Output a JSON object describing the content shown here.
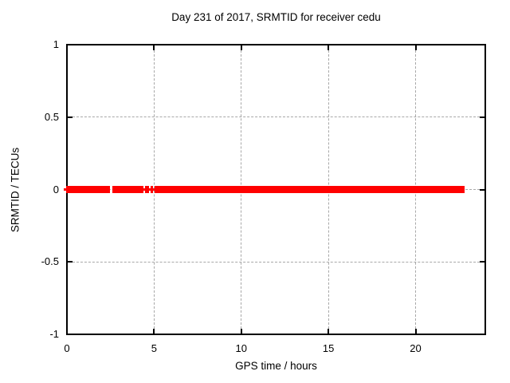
{
  "chart_data": {
    "type": "line",
    "title": "Day 231 of 2017, SRMTID for receiver cedu",
    "xlabel": "GPS time / hours",
    "ylabel": "SRMTID / TECUs",
    "xlim": [
      0,
      24
    ],
    "ylim": [
      -1,
      1
    ],
    "xticks": [
      0,
      5,
      10,
      15,
      20
    ],
    "yticks": [
      -1,
      -0.5,
      0,
      0.5,
      1
    ],
    "grid": "dashed gray, at x=5,10,15,20 and y=-0.5,0,0.5",
    "legend": "none",
    "series": [
      {
        "name": "SRMTID",
        "color": "#ff0000",
        "marker": "plus",
        "value": 0,
        "note": "constant value 0 TECUs wherever data exists; drawn as thick red band of dense point markers",
        "segments_hours": [
          [
            0,
            2.47
          ],
          [
            2.61,
            4.39
          ],
          [
            5.03,
            22.81
          ]
        ],
        "isolated_points_hours": [
          0,
          4.55,
          4.62,
          4.85
        ]
      }
    ],
    "colors": {
      "data": "#ff0000",
      "grid": "#a8a8a8",
      "border": "#000000",
      "text": "#000000",
      "background": "#ffffff"
    }
  }
}
